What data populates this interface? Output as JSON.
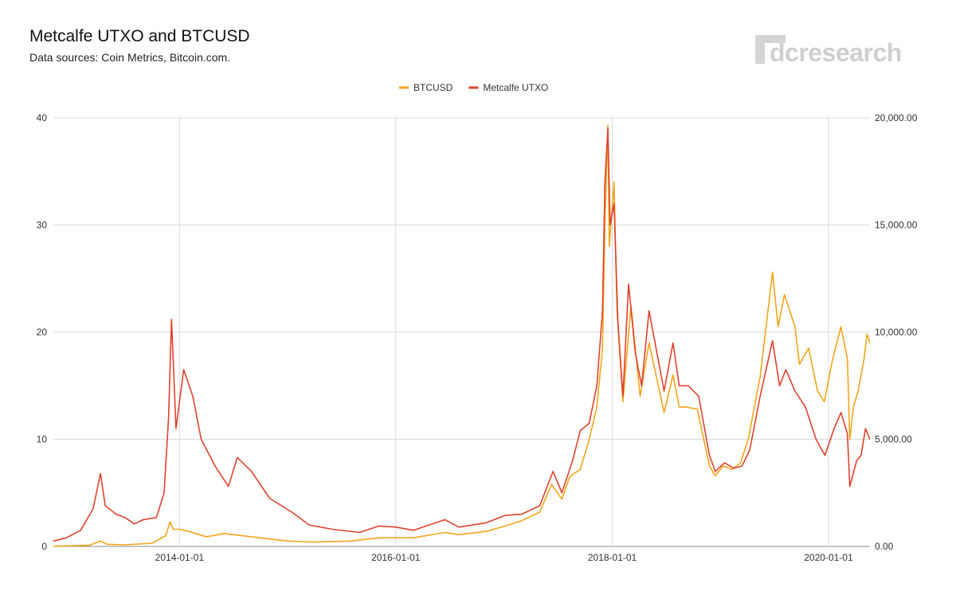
{
  "header": {
    "title": "Metcalfe UTXO and BTCUSD",
    "subtitle": "Data sources: Coin Metrics, Bitcoin.com.",
    "logo_text": "dcresearch"
  },
  "colors": {
    "btcusd": "#f2a51a",
    "metcalfe": "#e0422f",
    "grid": "#d9d9d9"
  },
  "chart_data": {
    "type": "line",
    "title": "Metcalfe UTXO and BTCUSD",
    "subtitle": "Data sources: Coin Metrics, Bitcoin.com.",
    "legend_position": "top-center",
    "grid": true,
    "xlim": [
      "2012-11-01",
      "2020-05-20"
    ],
    "x_ticks": [
      "2014-01-01",
      "2016-01-01",
      "2018-01-01",
      "2020-01-01"
    ],
    "y_left": {
      "lim": [
        0,
        40
      ],
      "ticks": [
        "0",
        "10",
        "20",
        "30",
        "40"
      ]
    },
    "y_right": {
      "lim": [
        0,
        20000
      ],
      "ticks": [
        "0.00",
        "5,000.00",
        "10,000.00",
        "15,000.00",
        "20,000.00"
      ]
    },
    "series": [
      {
        "name": "BTCUSD",
        "axis": "left",
        "points": [
          [
            "2012-11-01",
            0.02
          ],
          [
            "2013-03-01",
            0.1
          ],
          [
            "2013-04-10",
            0.5
          ],
          [
            "2013-05-01",
            0.2
          ],
          [
            "2013-07-01",
            0.15
          ],
          [
            "2013-10-01",
            0.3
          ],
          [
            "2013-11-15",
            1.0
          ],
          [
            "2013-11-30",
            2.3
          ],
          [
            "2013-12-10",
            1.6
          ],
          [
            "2014-01-01",
            1.6
          ],
          [
            "2014-02-01",
            1.4
          ],
          [
            "2014-04-01",
            0.9
          ],
          [
            "2014-06-01",
            1.2
          ],
          [
            "2014-09-01",
            0.9
          ],
          [
            "2015-01-01",
            0.5
          ],
          [
            "2015-04-01",
            0.4
          ],
          [
            "2015-08-01",
            0.5
          ],
          [
            "2015-11-05",
            0.8
          ],
          [
            "2016-01-01",
            0.8
          ],
          [
            "2016-03-01",
            0.8
          ],
          [
            "2016-06-15",
            1.3
          ],
          [
            "2016-08-01",
            1.1
          ],
          [
            "2016-11-01",
            1.4
          ],
          [
            "2017-01-05",
            1.9
          ],
          [
            "2017-03-01",
            2.4
          ],
          [
            "2017-05-01",
            3.2
          ],
          [
            "2017-06-10",
            5.8
          ],
          [
            "2017-07-15",
            4.4
          ],
          [
            "2017-08-10",
            6.5
          ],
          [
            "2017-09-15",
            7.2
          ],
          [
            "2017-10-15",
            10.0
          ],
          [
            "2017-11-10",
            13.0
          ],
          [
            "2017-11-29",
            18.5
          ],
          [
            "2017-12-07",
            30.0
          ],
          [
            "2017-12-17",
            39.3
          ],
          [
            "2017-12-22",
            28.0
          ],
          [
            "2018-01-07",
            34.0
          ],
          [
            "2018-01-17",
            22.0
          ],
          [
            "2018-02-06",
            13.5
          ],
          [
            "2018-03-05",
            22.5
          ],
          [
            "2018-04-05",
            14.0
          ],
          [
            "2018-05-05",
            19.0
          ],
          [
            "2018-06-25",
            12.5
          ],
          [
            "2018-07-25",
            16.0
          ],
          [
            "2018-08-15",
            13.0
          ],
          [
            "2018-09-10",
            13.0
          ],
          [
            "2018-10-15",
            12.8
          ],
          [
            "2018-11-25",
            7.5
          ],
          [
            "2018-12-15",
            6.6
          ],
          [
            "2019-01-10",
            7.5
          ],
          [
            "2019-02-10",
            7.2
          ],
          [
            "2019-03-10",
            7.8
          ],
          [
            "2019-04-05",
            10.0
          ],
          [
            "2019-05-15",
            15.8
          ],
          [
            "2019-06-26",
            25.6
          ],
          [
            "2019-07-15",
            20.5
          ],
          [
            "2019-08-05",
            23.5
          ],
          [
            "2019-09-10",
            20.5
          ],
          [
            "2019-09-25",
            17.0
          ],
          [
            "2019-10-26",
            18.5
          ],
          [
            "2019-11-25",
            14.5
          ],
          [
            "2019-12-18",
            13.5
          ],
          [
            "2020-01-15",
            17.5
          ],
          [
            "2020-02-12",
            20.5
          ],
          [
            "2020-03-05",
            17.5
          ],
          [
            "2020-03-13",
            10.0
          ],
          [
            "2020-03-25",
            13.0
          ],
          [
            "2020-04-10",
            14.5
          ],
          [
            "2020-04-30",
            17.5
          ],
          [
            "2020-05-10",
            19.8
          ],
          [
            "2020-05-20",
            19.0
          ]
        ]
      },
      {
        "name": "Metcalfe UTXO",
        "axis": "left",
        "points": [
          [
            "2012-11-01",
            0.5
          ],
          [
            "2012-12-15",
            0.8
          ],
          [
            "2013-02-01",
            1.5
          ],
          [
            "2013-03-15",
            3.5
          ],
          [
            "2013-04-09",
            6.8
          ],
          [
            "2013-04-25",
            3.8
          ],
          [
            "2013-06-01",
            3.0
          ],
          [
            "2013-07-01",
            2.7
          ],
          [
            "2013-08-01",
            2.1
          ],
          [
            "2013-09-01",
            2.5
          ],
          [
            "2013-10-15",
            2.7
          ],
          [
            "2013-11-10",
            5.0
          ],
          [
            "2013-11-25",
            12.0
          ],
          [
            "2013-12-05",
            21.2
          ],
          [
            "2013-12-20",
            11.0
          ],
          [
            "2014-01-15",
            16.5
          ],
          [
            "2014-02-15",
            14.0
          ],
          [
            "2014-03-15",
            10.0
          ],
          [
            "2014-05-01",
            7.5
          ],
          [
            "2014-06-15",
            5.6
          ],
          [
            "2014-07-15",
            8.3
          ],
          [
            "2014-09-01",
            7.0
          ],
          [
            "2014-11-01",
            4.5
          ],
          [
            "2015-01-15",
            3.2
          ],
          [
            "2015-03-15",
            2.0
          ],
          [
            "2015-06-01",
            1.6
          ],
          [
            "2015-09-01",
            1.3
          ],
          [
            "2015-11-05",
            1.9
          ],
          [
            "2016-01-01",
            1.8
          ],
          [
            "2016-03-01",
            1.5
          ],
          [
            "2016-06-15",
            2.5
          ],
          [
            "2016-08-01",
            1.8
          ],
          [
            "2016-11-01",
            2.2
          ],
          [
            "2017-01-05",
            2.9
          ],
          [
            "2017-03-01",
            3.0
          ],
          [
            "2017-05-01",
            3.8
          ],
          [
            "2017-06-15",
            7.0
          ],
          [
            "2017-07-15",
            5.0
          ],
          [
            "2017-08-20",
            8.0
          ],
          [
            "2017-09-15",
            10.8
          ],
          [
            "2017-10-15",
            11.5
          ],
          [
            "2017-11-10",
            15.0
          ],
          [
            "2017-11-29",
            22.0
          ],
          [
            "2017-12-07",
            34.0
          ],
          [
            "2017-12-17",
            39.0
          ],
          [
            "2017-12-25",
            30.0
          ],
          [
            "2018-01-07",
            32.0
          ],
          [
            "2018-01-20",
            21.0
          ],
          [
            "2018-02-06",
            14.0
          ],
          [
            "2018-02-25",
            24.5
          ],
          [
            "2018-03-20",
            18.0
          ],
          [
            "2018-04-10",
            15.0
          ],
          [
            "2018-05-05",
            22.0
          ],
          [
            "2018-06-25",
            14.5
          ],
          [
            "2018-07-25",
            19.0
          ],
          [
            "2018-08-15",
            15.0
          ],
          [
            "2018-09-15",
            15.0
          ],
          [
            "2018-10-20",
            14.0
          ],
          [
            "2018-11-25",
            8.5
          ],
          [
            "2018-12-15",
            7.0
          ],
          [
            "2019-01-15",
            7.8
          ],
          [
            "2019-02-15",
            7.3
          ],
          [
            "2019-03-15",
            7.5
          ],
          [
            "2019-04-10",
            9.0
          ],
          [
            "2019-05-15",
            14.0
          ],
          [
            "2019-06-26",
            19.2
          ],
          [
            "2019-07-20",
            15.0
          ],
          [
            "2019-08-10",
            16.5
          ],
          [
            "2019-09-10",
            14.5
          ],
          [
            "2019-10-15",
            13.0
          ],
          [
            "2019-11-20",
            10.0
          ],
          [
            "2019-12-20",
            8.5
          ],
          [
            "2020-01-20",
            11.0
          ],
          [
            "2020-02-12",
            12.5
          ],
          [
            "2020-03-05",
            10.5
          ],
          [
            "2020-03-13",
            5.6
          ],
          [
            "2020-04-05",
            8.0
          ],
          [
            "2020-04-20",
            8.5
          ],
          [
            "2020-05-05",
            11.0
          ],
          [
            "2020-05-20",
            10.0
          ]
        ]
      }
    ]
  }
}
